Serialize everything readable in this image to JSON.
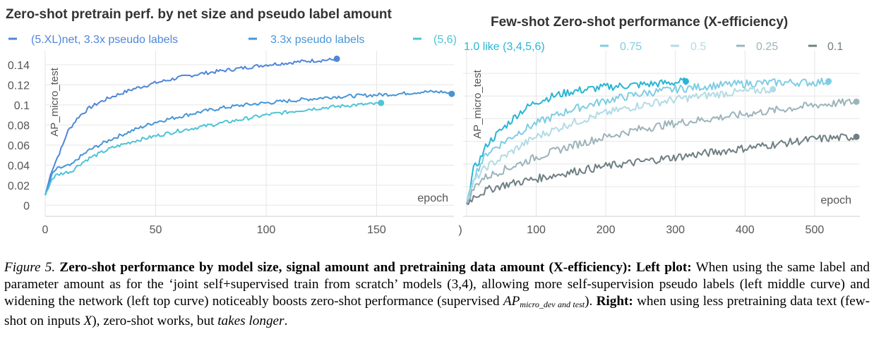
{
  "chart_data": [
    {
      "type": "line",
      "title": "Zero-shot pretrain perf. by net size and pseudo label amount",
      "xlabel": "epoch",
      "ylabel": "AP_micro_test",
      "xlim": [
        0,
        185
      ],
      "ylim": [
        -0.004,
        0.154
      ],
      "x_ticks": [
        0,
        50,
        100,
        150
      ],
      "y_ticks": [
        0,
        0.02,
        0.04,
        0.06,
        0.08,
        0.1,
        0.12,
        0.14
      ],
      "y_tick_labels": [
        "0",
        "0.02",
        "0.04",
        "0.06",
        "0.08",
        "0.1",
        "0.12",
        "0.14"
      ],
      "grid": true,
      "legend_position": "top",
      "series": [
        {
          "name": "(5.XL)net, 3.3x pseudo labels",
          "color": "#4f86d9",
          "x": [
            0,
            3,
            5,
            8,
            10,
            15,
            20,
            25,
            30,
            40,
            50,
            60,
            70,
            80,
            90,
            100,
            110,
            120,
            130,
            132
          ],
          "y": [
            0.01,
            0.035,
            0.045,
            0.06,
            0.073,
            0.088,
            0.097,
            0.103,
            0.108,
            0.116,
            0.122,
            0.127,
            0.131,
            0.134,
            0.137,
            0.14,
            0.142,
            0.144,
            0.145,
            0.146
          ]
        },
        {
          "name": "3.3x pseudo labels",
          "color": "#4795d6",
          "x": [
            0,
            3,
            5,
            8,
            12,
            15,
            20,
            30,
            40,
            50,
            60,
            70,
            80,
            90,
            100,
            110,
            120,
            130,
            140,
            150,
            160,
            170,
            180,
            184
          ],
          "y": [
            0.01,
            0.03,
            0.036,
            0.038,
            0.04,
            0.047,
            0.055,
            0.066,
            0.075,
            0.083,
            0.088,
            0.093,
            0.097,
            0.1,
            0.102,
            0.104,
            0.106,
            0.108,
            0.109,
            0.11,
            0.111,
            0.113,
            0.113,
            0.111
          ]
        },
        {
          "name": "(5,6)",
          "color": "#4fc4d6",
          "x": [
            0,
            3,
            5,
            8,
            12,
            15,
            20,
            30,
            40,
            50,
            60,
            70,
            80,
            90,
            100,
            110,
            120,
            130,
            140,
            150,
            152
          ],
          "y": [
            0.01,
            0.026,
            0.03,
            0.032,
            0.034,
            0.04,
            0.047,
            0.057,
            0.064,
            0.069,
            0.074,
            0.078,
            0.082,
            0.086,
            0.09,
            0.093,
            0.096,
            0.098,
            0.1,
            0.101,
            0.102
          ]
        }
      ]
    },
    {
      "type": "line",
      "title": "Few-shot Zero-shot performance (X-efficiency)",
      "xlabel": "epoch",
      "ylabel": "AP_micro_test",
      "xlim": [
        -5,
        565
      ],
      "ylim": [
        0.0,
        0.14
      ],
      "x_ticks": [
        0,
        100,
        200,
        300,
        400,
        500
      ],
      "x_tick_labels": [
        ")",
        "100",
        "200",
        "300",
        "400",
        "500"
      ],
      "grid": true,
      "legend_position": "top",
      "series": [
        {
          "name": "1.0 like (3,4,5,6)",
          "color": "#2bb5d6",
          "x": [
            0,
            5,
            10,
            20,
            30,
            50,
            75,
            100,
            125,
            150,
            200,
            250,
            300,
            315
          ],
          "y": [
            0.005,
            0.02,
            0.035,
            0.045,
            0.058,
            0.07,
            0.085,
            0.095,
            0.1,
            0.104,
            0.108,
            0.11,
            0.112,
            0.113
          ]
        },
        {
          "name": "0.75",
          "color": "#7fcde3",
          "x": [
            0,
            5,
            10,
            20,
            30,
            50,
            75,
            100,
            150,
            200,
            250,
            300,
            350,
            400,
            450,
            500,
            520
          ],
          "y": [
            0.005,
            0.015,
            0.028,
            0.04,
            0.05,
            0.058,
            0.068,
            0.076,
            0.088,
            0.096,
            0.102,
            0.106,
            0.109,
            0.111,
            0.112,
            0.112,
            0.113
          ]
        },
        {
          "name": "0.5",
          "color": "#b2dbe6",
          "x": [
            0,
            5,
            10,
            20,
            30,
            50,
            75,
            100,
            150,
            200,
            250,
            300,
            350,
            400,
            440
          ],
          "y": [
            0.005,
            0.014,
            0.024,
            0.032,
            0.038,
            0.045,
            0.055,
            0.064,
            0.076,
            0.085,
            0.092,
            0.097,
            0.101,
            0.104,
            0.106
          ]
        },
        {
          "name": "0.25",
          "color": "#9bb4bb",
          "x": [
            0,
            5,
            10,
            20,
            30,
            50,
            75,
            100,
            150,
            200,
            250,
            300,
            350,
            400,
            450,
            500,
            560
          ],
          "y": [
            0.005,
            0.012,
            0.018,
            0.026,
            0.029,
            0.034,
            0.04,
            0.046,
            0.056,
            0.064,
            0.071,
            0.076,
            0.08,
            0.084,
            0.088,
            0.092,
            0.095
          ]
        },
        {
          "name": "0.1",
          "color": "#6f7f84",
          "x": [
            0,
            5,
            10,
            15,
            20,
            30,
            50,
            75,
            100,
            150,
            200,
            250,
            300,
            350,
            400,
            450,
            500,
            560
          ],
          "y": [
            0.005,
            0.008,
            0.011,
            0.013,
            0.014,
            0.017,
            0.021,
            0.024,
            0.027,
            0.033,
            0.038,
            0.042,
            0.046,
            0.05,
            0.054,
            0.058,
            0.062,
            0.064
          ]
        }
      ]
    }
  ],
  "caption": {
    "figure_label": "Figure 5.",
    "bold_heading": "Zero-shot performance by model size, signal amount and pretraining data amount (X-efficiency):",
    "left_label": "Left plot:",
    "left_text": "When using the same label and parameter amount as for the ‘joint self+supervised train from scratch’ models (3,4), allowing more self-supervision pseudo labels (left middle curve) and widening the network (left top curve) noticeably boosts zero-shot performance (supervised",
    "ap_main": "AP",
    "ap_sub": "micro_dev and test",
    "after_ap": ").",
    "right_label": "Right:",
    "right_text": "when using less pretraining data text (few-shot on inputs",
    "x_symbol": "X",
    "right_text_2": "), zero-shot works, but",
    "italic_end": "takes longer",
    "final_period": "."
  }
}
